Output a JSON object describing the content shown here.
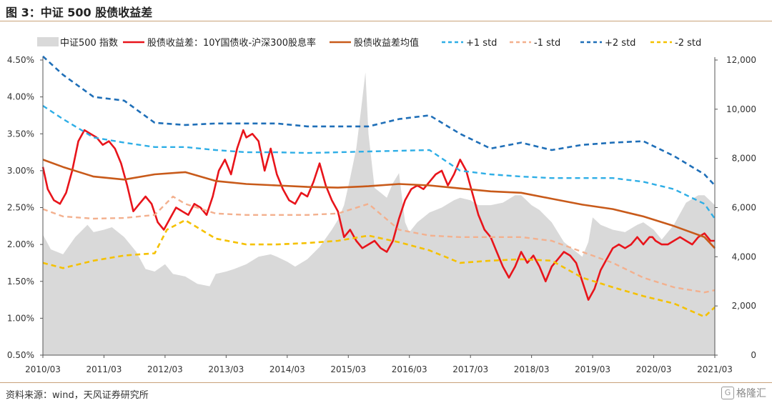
{
  "header": {
    "title": "图 3：中证 500 股债收益差"
  },
  "footer": {
    "source": "资料来源：wind，天风证券研究所",
    "watermark": "格隆汇"
  },
  "colors": {
    "index_area": "#d9d9d9",
    "spread": "#e8141b",
    "mean": "#c85a1a",
    "p1": "#2eaee6",
    "m1": "#f3b08e",
    "p2": "#1f6fb8",
    "m2": "#f5c100",
    "rule": "#c9a27a"
  },
  "chart_data": {
    "type": "line",
    "x_ticks": [
      "2010/03",
      "2011/03",
      "2012/03",
      "2013/03",
      "2014/03",
      "2015/03",
      "2016/03",
      "2017/03",
      "2018/03",
      "2019/03",
      "2020/03",
      "2021/03"
    ],
    "y_left": {
      "min": 0.5,
      "max": 4.5,
      "ticks": [
        "0.50%",
        "1.00%",
        "1.50%",
        "2.00%",
        "2.50%",
        "3.00%",
        "3.50%",
        "4.00%",
        "4.50%"
      ]
    },
    "y_right": {
      "min": 0,
      "max": 12000,
      "ticks": [
        "0",
        "2,000",
        "4,000",
        "6,000",
        "8,000",
        "10,000",
        "12,000"
      ]
    },
    "legend": [
      {
        "name": "中证500 指数",
        "style": "area"
      },
      {
        "name": "股债收益差：10Y国债收-沪深300股息率",
        "style": "solid-red"
      },
      {
        "name": "股债收益差均值",
        "style": "solid-brown"
      },
      {
        "name": "+1 std",
        "style": "dash-light-blue"
      },
      {
        "name": "-1 std",
        "style": "dash-light-orange"
      },
      {
        "name": "+2 std",
        "style": "dash-dark-blue"
      },
      {
        "name": "-2 std",
        "style": "dash-yellow"
      }
    ],
    "series": [
      {
        "name": "中证500 指数",
        "axis": "right",
        "x": [
          2010.17,
          2010.3,
          2010.5,
          2010.7,
          2010.9,
          2011.0,
          2011.17,
          2011.3,
          2011.5,
          2011.7,
          2011.85,
          2012.0,
          2012.17,
          2012.3,
          2012.5,
          2012.7,
          2012.9,
          2013.0,
          2013.17,
          2013.3,
          2013.5,
          2013.7,
          2013.9,
          2014.0,
          2014.17,
          2014.3,
          2014.5,
          2014.7,
          2014.9,
          2015.0,
          2015.1,
          2015.2,
          2015.3,
          2015.38,
          2015.45,
          2015.5,
          2015.6,
          2015.7,
          2015.8,
          2015.9,
          2016.0,
          2016.1,
          2016.17,
          2016.3,
          2016.5,
          2016.7,
          2016.9,
          2017.0,
          2017.17,
          2017.3,
          2017.5,
          2017.7,
          2017.9,
          2018.0,
          2018.17,
          2018.3,
          2018.5,
          2018.7,
          2018.9,
          2019.0,
          2019.1,
          2019.17,
          2019.3,
          2019.5,
          2019.7,
          2019.9,
          2020.0,
          2020.17,
          2020.3,
          2020.5,
          2020.7,
          2020.9,
          2021.0,
          2021.17
        ],
        "values": [
          4900,
          4300,
          4100,
          4800,
          5300,
          5000,
          5100,
          5200,
          4800,
          4200,
          3500,
          3400,
          3700,
          3300,
          3200,
          2900,
          2800,
          3300,
          3400,
          3500,
          3700,
          4000,
          4100,
          4000,
          3800,
          3600,
          3900,
          4400,
          5100,
          5500,
          6100,
          7200,
          8400,
          10000,
          11500,
          9000,
          6800,
          6600,
          6400,
          7000,
          7400,
          5400,
          5000,
          5400,
          5800,
          6000,
          6300,
          6400,
          6300,
          6100,
          6100,
          6200,
          6500,
          6500,
          6100,
          5900,
          5400,
          4600,
          4200,
          4000,
          4600,
          5600,
          5300,
          5100,
          5000,
          5300,
          5400,
          5100,
          4700,
          5300,
          6200,
          6500,
          6500,
          6100
        ]
      },
      {
        "name": "股债收益差：10Y国债收-沪深300股息率",
        "axis": "left",
        "x": [
          2010.17,
          2010.25,
          2010.35,
          2010.45,
          2010.55,
          2010.65,
          2010.75,
          2010.85,
          2010.95,
          2011.05,
          2011.15,
          2011.25,
          2011.35,
          2011.45,
          2011.55,
          2011.65,
          2011.75,
          2011.85,
          2011.95,
          2012.05,
          2012.15,
          2012.25,
          2012.35,
          2012.45,
          2012.55,
          2012.65,
          2012.75,
          2012.85,
          2012.95,
          2013.05,
          2013.15,
          2013.25,
          2013.35,
          2013.45,
          2013.5,
          2013.6,
          2013.7,
          2013.8,
          2013.9,
          2014.0,
          2014.1,
          2014.2,
          2014.3,
          2014.4,
          2014.5,
          2014.6,
          2014.7,
          2014.8,
          2014.9,
          2015.0,
          2015.1,
          2015.2,
          2015.3,
          2015.4,
          2015.5,
          2015.6,
          2015.7,
          2015.8,
          2015.9,
          2016.0,
          2016.1,
          2016.2,
          2016.3,
          2016.4,
          2016.5,
          2016.6,
          2016.7,
          2016.8,
          2016.9,
          2017.0,
          2017.1,
          2017.2,
          2017.3,
          2017.4,
          2017.5,
          2017.6,
          2017.7,
          2017.8,
          2017.9,
          2018.0,
          2018.1,
          2018.2,
          2018.3,
          2018.4,
          2018.5,
          2018.6,
          2018.7,
          2018.8,
          2018.9,
          2019.0,
          2019.1,
          2019.2,
          2019.3,
          2019.4,
          2019.5,
          2019.6,
          2019.7,
          2019.8,
          2019.9,
          2020.0,
          2020.1,
          2020.15,
          2020.2,
          2020.3,
          2020.4,
          2020.5,
          2020.6,
          2020.7,
          2020.8,
          2020.9,
          2021.0,
          2021.1,
          2021.17
        ],
        "values": [
          3.05,
          2.75,
          2.6,
          2.55,
          2.7,
          3.0,
          3.4,
          3.55,
          3.5,
          3.45,
          3.35,
          3.4,
          3.3,
          3.1,
          2.8,
          2.45,
          2.55,
          2.65,
          2.55,
          2.3,
          2.2,
          2.35,
          2.5,
          2.45,
          2.4,
          2.55,
          2.5,
          2.4,
          2.65,
          3.0,
          3.15,
          2.95,
          3.3,
          3.55,
          3.45,
          3.5,
          3.4,
          3.0,
          3.3,
          2.95,
          2.75,
          2.6,
          2.55,
          2.7,
          2.65,
          2.85,
          3.1,
          2.8,
          2.6,
          2.45,
          2.1,
          2.2,
          2.05,
          1.95,
          2.0,
          2.05,
          1.95,
          1.9,
          2.05,
          2.35,
          2.6,
          2.75,
          2.8,
          2.75,
          2.85,
          2.95,
          3.0,
          2.8,
          2.95,
          3.15,
          3.0,
          2.7,
          2.4,
          2.2,
          2.1,
          1.9,
          1.7,
          1.55,
          1.7,
          1.9,
          1.75,
          1.85,
          1.7,
          1.5,
          1.7,
          1.8,
          1.9,
          1.85,
          1.75,
          1.5,
          1.25,
          1.4,
          1.65,
          1.8,
          1.95,
          2.0,
          1.95,
          2.0,
          2.1,
          2.0,
          2.1,
          2.1,
          2.05,
          2.0,
          2.0,
          2.05,
          2.1,
          2.05,
          2.0,
          2.1,
          2.15,
          2.05,
          2.05
        ]
      },
      {
        "name": "股债收益差均值",
        "axis": "left",
        "x": [
          2010.17,
          2010.5,
          2011.0,
          2011.5,
          2012.0,
          2012.5,
          2013.0,
          2013.5,
          2014.0,
          2014.5,
          2015.0,
          2015.5,
          2016.0,
          2016.5,
          2017.0,
          2017.5,
          2018.0,
          2018.5,
          2019.0,
          2019.5,
          2020.0,
          2020.5,
          2021.0,
          2021.17
        ],
        "values": [
          3.15,
          3.05,
          2.92,
          2.88,
          2.95,
          2.98,
          2.86,
          2.82,
          2.8,
          2.78,
          2.77,
          2.79,
          2.82,
          2.8,
          2.76,
          2.72,
          2.7,
          2.62,
          2.54,
          2.48,
          2.38,
          2.25,
          2.1,
          1.95
        ]
      },
      {
        "name": "+1 std",
        "axis": "left",
        "x": [
          2010.17,
          2010.5,
          2011.0,
          2011.5,
          2012.0,
          2012.5,
          2013.0,
          2013.5,
          2014.0,
          2014.5,
          2015.0,
          2015.5,
          2016.0,
          2016.5,
          2017.0,
          2017.5,
          2018.0,
          2018.5,
          2019.0,
          2019.5,
          2020.0,
          2020.5,
          2021.0,
          2021.17
        ],
        "values": [
          3.88,
          3.7,
          3.45,
          3.38,
          3.32,
          3.32,
          3.28,
          3.25,
          3.25,
          3.24,
          3.25,
          3.26,
          3.27,
          3.28,
          3.0,
          2.95,
          2.92,
          2.9,
          2.9,
          2.9,
          2.85,
          2.75,
          2.55,
          2.35
        ]
      },
      {
        "name": "-1 std",
        "axis": "left",
        "x": [
          2010.17,
          2010.5,
          2011.0,
          2011.5,
          2012.0,
          2012.3,
          2012.5,
          2013.0,
          2013.5,
          2014.0,
          2014.5,
          2015.0,
          2015.5,
          2016.0,
          2016.5,
          2017.0,
          2017.5,
          2018.0,
          2018.5,
          2019.0,
          2019.5,
          2020.0,
          2020.5,
          2021.0,
          2021.17
        ],
        "values": [
          2.48,
          2.38,
          2.35,
          2.36,
          2.4,
          2.65,
          2.55,
          2.42,
          2.4,
          2.4,
          2.4,
          2.42,
          2.55,
          2.2,
          2.12,
          2.1,
          2.1,
          2.1,
          2.05,
          1.9,
          1.75,
          1.55,
          1.42,
          1.35,
          1.38
        ]
      },
      {
        "name": "+2 std",
        "axis": "left",
        "x": [
          2010.17,
          2010.5,
          2011.0,
          2011.5,
          2012.0,
          2012.5,
          2013.0,
          2013.5,
          2014.0,
          2014.5,
          2015.0,
          2015.5,
          2016.0,
          2016.5,
          2017.0,
          2017.5,
          2018.0,
          2018.5,
          2019.0,
          2019.5,
          2020.0,
          2020.5,
          2021.0,
          2021.17
        ],
        "values": [
          4.55,
          4.3,
          4.0,
          3.95,
          3.65,
          3.62,
          3.64,
          3.64,
          3.64,
          3.6,
          3.6,
          3.6,
          3.7,
          3.75,
          3.5,
          3.3,
          3.38,
          3.28,
          3.35,
          3.38,
          3.4,
          3.2,
          2.95,
          2.8
        ]
      },
      {
        "name": "-2 std",
        "axis": "left",
        "x": [
          2010.17,
          2010.5,
          2011.0,
          2011.5,
          2012.0,
          2012.2,
          2012.5,
          2013.0,
          2013.5,
          2014.0,
          2014.5,
          2015.0,
          2015.5,
          2016.0,
          2016.5,
          2017.0,
          2017.5,
          2018.0,
          2018.5,
          2019.0,
          2019.5,
          2020.0,
          2020.5,
          2021.0,
          2021.17
        ],
        "values": [
          1.75,
          1.68,
          1.78,
          1.85,
          1.88,
          2.2,
          2.33,
          2.08,
          2.0,
          2.0,
          2.02,
          2.05,
          2.12,
          2.03,
          1.92,
          1.75,
          1.78,
          1.8,
          1.78,
          1.55,
          1.42,
          1.3,
          1.2,
          1.02,
          1.15
        ]
      }
    ]
  }
}
